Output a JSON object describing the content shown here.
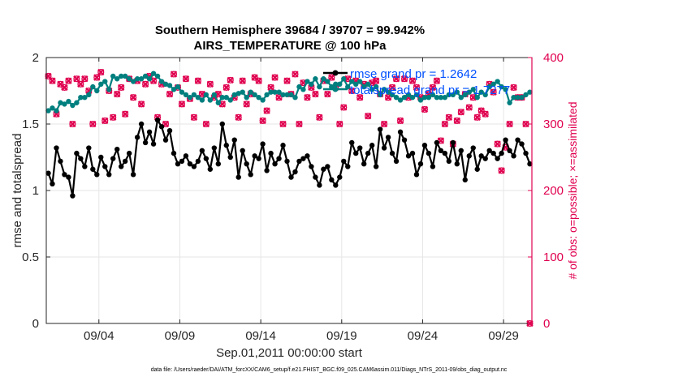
{
  "chart_data": {
    "type": "line",
    "title_line1": "Southern Hemisphere 39684 / 39707 = 99.942%",
    "title_line2": "AIRS_TEMPERATURE @ 100 hPa",
    "xlabel": "Sep.01,2011 00:00:00 start",
    "ylabel_left": "rmse and totalspread",
    "ylabel_right": "# of obs: o=possible; ×=assimilated",
    "footer": "data file: /Users/raeder/DAI/ATM_forcXX/CAM6_setup/f.e21.FHIST_BGC.f09_025.CAM6assim.011/Diags_NTrS_2011-09/obs_diag_output.nc",
    "xlim": [
      0.75,
      30.75
    ],
    "ylim_left": [
      0,
      2
    ],
    "ylim_right": [
      0,
      400
    ],
    "x_ticks": [
      {
        "x": 4,
        "label": "09/04"
      },
      {
        "x": 9,
        "label": "09/09"
      },
      {
        "x": 14,
        "label": "09/14"
      },
      {
        "x": 19,
        "label": "09/19"
      },
      {
        "x": 24,
        "label": "09/24"
      },
      {
        "x": 29,
        "label": "09/29"
      }
    ],
    "y_ticks_left": [
      {
        "v": 0,
        "label": "0"
      },
      {
        "v": 0.5,
        "label": "0.5"
      },
      {
        "v": 1,
        "label": "1"
      },
      {
        "v": 1.5,
        "label": "1.5"
      },
      {
        "v": 2,
        "label": "2"
      }
    ],
    "y_ticks_right": [
      {
        "v": 0,
        "label": "0"
      },
      {
        "v": 100,
        "label": "100"
      },
      {
        "v": 200,
        "label": "200"
      },
      {
        "v": 300,
        "label": "300"
      },
      {
        "v": 400,
        "label": "400"
      }
    ],
    "x": [
      0.875,
      1.125,
      1.375,
      1.625,
      1.875,
      2.125,
      2.375,
      2.625,
      2.875,
      3.125,
      3.375,
      3.625,
      3.875,
      4.125,
      4.375,
      4.625,
      4.875,
      5.125,
      5.375,
      5.625,
      5.875,
      6.125,
      6.375,
      6.625,
      6.875,
      7.125,
      7.375,
      7.625,
      7.875,
      8.125,
      8.375,
      8.625,
      8.875,
      9.125,
      9.375,
      9.625,
      9.875,
      10.125,
      10.375,
      10.625,
      10.875,
      11.125,
      11.375,
      11.625,
      11.875,
      12.125,
      12.375,
      12.625,
      12.875,
      13.125,
      13.375,
      13.625,
      13.875,
      14.125,
      14.375,
      14.625,
      14.875,
      15.125,
      15.375,
      15.625,
      15.875,
      16.125,
      16.375,
      16.625,
      16.875,
      17.125,
      17.375,
      17.625,
      17.875,
      18.125,
      18.375,
      18.625,
      18.875,
      19.125,
      19.375,
      19.625,
      19.875,
      20.125,
      20.375,
      20.625,
      20.875,
      21.125,
      21.375,
      21.625,
      21.875,
      22.125,
      22.375,
      22.625,
      22.875,
      23.125,
      23.375,
      23.625,
      23.875,
      24.125,
      24.375,
      24.625,
      24.875,
      25.125,
      25.375,
      25.625,
      25.875,
      26.125,
      26.375,
      26.625,
      26.875,
      27.125,
      27.375,
      27.625,
      27.875,
      28.125,
      28.375,
      28.625,
      28.875,
      29.125,
      29.375,
      29.625,
      29.875,
      30.125,
      30.375,
      30.625
    ],
    "series": [
      {
        "name": "rmse",
        "legend": "rmse grand pr = 1.2642",
        "color": "#000000",
        "axis": "left",
        "values": [
          1.13,
          1.05,
          1.32,
          1.22,
          1.12,
          1.1,
          0.96,
          1.28,
          1.24,
          1.18,
          1.32,
          1.16,
          1.12,
          1.25,
          1.18,
          1.12,
          1.24,
          1.31,
          1.18,
          1.22,
          1.28,
          1.12,
          1.4,
          1.5,
          1.36,
          1.44,
          1.35,
          1.53,
          1.48,
          1.38,
          1.45,
          1.28,
          1.2,
          1.22,
          1.26,
          1.2,
          1.18,
          1.22,
          1.3,
          1.24,
          1.16,
          1.32,
          1.2,
          1.5,
          1.34,
          1.25,
          1.38,
          1.1,
          1.3,
          1.2,
          1.12,
          1.26,
          1.24,
          1.35,
          1.15,
          1.28,
          1.2,
          1.24,
          1.34,
          1.22,
          1.1,
          1.14,
          1.22,
          1.24,
          1.26,
          1.18,
          1.1,
          1.04,
          1.16,
          1.18,
          1.08,
          1.04,
          1.1,
          1.22,
          1.18,
          1.36,
          1.28,
          1.32,
          1.2,
          1.28,
          1.34,
          1.18,
          1.46,
          1.32,
          1.4,
          1.28,
          1.22,
          1.44,
          1.38,
          1.26,
          1.28,
          1.12,
          1.2,
          1.34,
          1.28,
          1.18,
          1.36,
          1.3,
          1.28,
          1.22,
          1.36,
          1.2,
          1.3,
          1.08,
          1.26,
          1.32,
          1.16,
          1.26,
          1.24,
          1.3,
          1.28,
          1.24,
          1.28,
          1.38,
          1.3,
          1.26,
          1.38,
          1.35,
          1.28,
          1.2
        ]
      },
      {
        "name": "totalspread",
        "legend": "totalspread grand pr = 1.7277",
        "color": "#007f7f",
        "axis": "left",
        "values": [
          1.6,
          1.62,
          1.6,
          1.66,
          1.65,
          1.67,
          1.64,
          1.66,
          1.7,
          1.7,
          1.72,
          1.78,
          1.75,
          1.8,
          1.82,
          1.76,
          1.86,
          1.84,
          1.86,
          1.86,
          1.84,
          1.82,
          1.84,
          1.84,
          1.86,
          1.84,
          1.88,
          1.86,
          1.82,
          1.8,
          1.79,
          1.76,
          1.78,
          1.74,
          1.72,
          1.7,
          1.72,
          1.7,
          1.68,
          1.72,
          1.68,
          1.72,
          1.66,
          1.7,
          1.7,
          1.68,
          1.72,
          1.73,
          1.74,
          1.7,
          1.74,
          1.72,
          1.7,
          1.68,
          1.72,
          1.74,
          1.74,
          1.74,
          1.72,
          1.72,
          1.72,
          1.7,
          1.78,
          1.76,
          1.82,
          1.8,
          1.84,
          1.78,
          1.84,
          1.82,
          1.78,
          1.8,
          1.8,
          1.84,
          1.78,
          1.82,
          1.8,
          1.82,
          1.78,
          1.8,
          1.76,
          1.78,
          1.72,
          1.76,
          1.74,
          1.72,
          1.7,
          1.68,
          1.7,
          1.72,
          1.7,
          1.72,
          1.68,
          1.7,
          1.7,
          1.72,
          1.7,
          1.7,
          1.7,
          1.72,
          1.72,
          1.74,
          1.7,
          1.72,
          1.74,
          1.76,
          1.7,
          1.74,
          1.72,
          1.78,
          1.8,
          1.82,
          1.78,
          1.76,
          1.66,
          1.7,
          1.7,
          1.7,
          1.72,
          1.74
        ]
      },
      {
        "name": "obs_possible",
        "legend": "",
        "color": "#e0004f",
        "axis": "right",
        "marker": "o",
        "values": [
          372,
          365,
          315,
          360,
          355,
          365,
          300,
          368,
          360,
          368,
          350,
          300,
          370,
          378,
          305,
          350,
          310,
          345,
          355,
          315,
          368,
          340,
          365,
          330,
          360,
          372,
          365,
          310,
          360,
          300,
          345,
          375,
          355,
          330,
          368,
          338,
          310,
          365,
          345,
          300,
          360,
          340,
          345,
          330,
          355,
          366,
          340,
          310,
          365,
          330,
          345,
          370,
          365,
          305,
          320,
          355,
          370,
          340,
          300,
          365,
          345,
          375,
          300,
          362,
          340,
          355,
          345,
          310,
          365,
          345,
          370,
          355,
          300,
          325,
          368,
          350,
          365,
          340,
          360,
          312,
          362,
          365,
          345,
          300,
          340,
          355,
          368,
          305,
          368,
          340,
          365,
          355,
          340,
          322,
          345,
          355,
          365,
          275,
          300,
          310,
          270,
          305,
          318,
          345,
          325,
          340,
          310,
          320,
          315,
          360,
          348,
          270,
          230,
          265,
          300,
          355,
          340,
          340,
          300,
          0
        ]
      },
      {
        "name": "obs_assimilated",
        "legend": "",
        "color": "#e0004f",
        "axis": "right",
        "marker": "x",
        "values": [
          372,
          365,
          315,
          360,
          355,
          365,
          300,
          368,
          360,
          368,
          350,
          300,
          370,
          378,
          305,
          350,
          310,
          345,
          355,
          315,
          368,
          340,
          365,
          330,
          360,
          372,
          365,
          310,
          360,
          300,
          345,
          375,
          355,
          330,
          368,
          338,
          310,
          365,
          345,
          300,
          360,
          340,
          345,
          330,
          355,
          366,
          340,
          310,
          365,
          330,
          345,
          370,
          365,
          305,
          320,
          355,
          370,
          340,
          300,
          365,
          345,
          375,
          300,
          362,
          340,
          355,
          345,
          310,
          365,
          345,
          370,
          355,
          300,
          325,
          368,
          350,
          365,
          340,
          360,
          312,
          362,
          365,
          345,
          300,
          340,
          355,
          368,
          305,
          368,
          340,
          365,
          355,
          340,
          322,
          345,
          355,
          365,
          275,
          300,
          310,
          270,
          305,
          318,
          345,
          325,
          340,
          310,
          320,
          315,
          360,
          348,
          270,
          230,
          265,
          300,
          355,
          340,
          340,
          300,
          0
        ]
      }
    ]
  }
}
